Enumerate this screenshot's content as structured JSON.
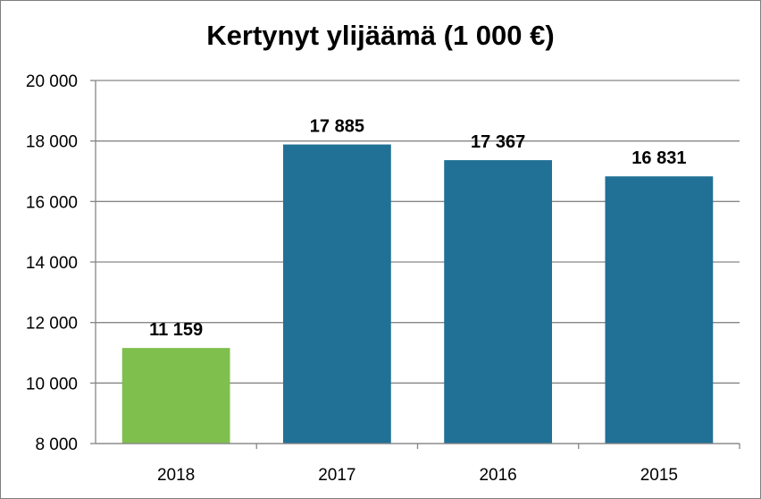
{
  "chart_data": {
    "type": "bar",
    "title": "Kertynyt ylijäämä (1 000 €)",
    "categories": [
      "2018",
      "2017",
      "2016",
      "2015"
    ],
    "values": [
      11159,
      17885,
      17367,
      16831
    ],
    "data_labels": [
      "11 159",
      "17 885",
      "17 367",
      "16 831"
    ],
    "bar_colors": [
      "#7fbf4d",
      "#217096",
      "#217096",
      "#217096"
    ],
    "ylim": [
      8000,
      20000
    ],
    "yticks": [
      8000,
      10000,
      12000,
      14000,
      16000,
      18000,
      20000
    ],
    "ytick_labels": [
      "8 000",
      "10 000",
      "12 000",
      "14 000",
      "16 000",
      "18 000",
      "20 000"
    ],
    "xlabel": "",
    "ylabel": "",
    "grid": true,
    "legend": "none"
  }
}
